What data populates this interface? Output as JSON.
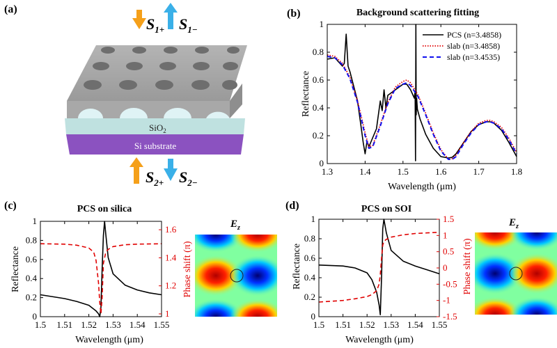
{
  "figure": {
    "colors": {
      "black": "#000000",
      "red": "#e00000",
      "blue": "#1010ee",
      "orange": "#f5a01a",
      "cyan": "#3ab0e8"
    },
    "panel_a": {
      "label": "(a)",
      "s1_plus": "S",
      "s1_plus_sub": "1+",
      "s1_minus": "S",
      "s1_minus_sub": "1−",
      "s2_plus": "S",
      "s2_plus_sub": "2+",
      "s2_minus": "S",
      "s2_minus_sub": "2−",
      "sio2_label": "SiO",
      "sio2_sub": "2",
      "substrate_label": "Si substrate"
    },
    "panel_b": {
      "label": "(b)",
      "title": "Background scattering fitting",
      "ylabel": "Reflectance",
      "xlabel": "Wavelength (μm)",
      "xticks": [
        "1.3",
        "1.4",
        "1.5",
        "1.6",
        "1.7",
        "1.8"
      ],
      "yticks": [
        "0",
        "0.2",
        "0.4",
        "0.6",
        "0.8",
        "1"
      ],
      "legend": [
        "PCS (n=3.4858)",
        "slab (n=3.4858)",
        "slab (n=3.4535)"
      ]
    },
    "panel_c": {
      "label": "(c)",
      "title": "PCS on silica",
      "ylabel_left": "Reflectance",
      "ylabel_right": "Phase shift (π)",
      "xlabel": "Wavelength (μm)",
      "xticks": [
        "1.5",
        "1.51",
        "1.52",
        "1.53",
        "1.54",
        "1.55"
      ],
      "yticks_left": [
        "0",
        "0.2",
        "0.4",
        "0.6",
        "0.8",
        "1"
      ],
      "yticks_right": [
        "1",
        "1.2",
        "1.4",
        "1.6"
      ],
      "field_label": "E",
      "field_sub": "z"
    },
    "panel_d": {
      "label": "(d)",
      "title": "PCS on SOI",
      "ylabel_left": "Reflectance",
      "ylabel_right": "Phase shift (π)",
      "xlabel": "Wavelength (μm)",
      "xticks": [
        "1.5",
        "1.51",
        "1.52",
        "1.53",
        "1.54",
        "1.55"
      ],
      "yticks_left": [
        "0",
        "0.2",
        "0.4",
        "0.6",
        "0.8",
        "1"
      ],
      "yticks_right": [
        "-1.5",
        "-1",
        "-0.5",
        "0",
        "0.5",
        "1",
        "1.5"
      ],
      "field_label": "E",
      "field_sub": "z"
    }
  },
  "chart_data": [
    {
      "type": "line",
      "title": "Background scattering fitting",
      "xlabel": "Wavelength (μm)",
      "ylabel": "Reflectance",
      "xlim": [
        1.3,
        1.8
      ],
      "ylim": [
        0,
        1
      ],
      "legend_position": "top-right",
      "series": [
        {
          "name": "PCS (n=3.4858)",
          "style": "solid-black",
          "x": [
            1.3,
            1.32,
            1.34,
            1.345,
            1.35,
            1.355,
            1.36,
            1.38,
            1.39,
            1.395,
            1.4,
            1.405,
            1.41,
            1.43,
            1.44,
            1.445,
            1.45,
            1.455,
            1.46,
            1.48,
            1.5,
            1.51,
            1.52,
            1.53,
            1.532,
            1.533,
            1.534,
            1.535,
            1.536,
            1.538,
            1.545,
            1.56,
            1.58,
            1.6,
            1.62,
            1.63,
            1.64,
            1.66,
            1.68,
            1.7,
            1.72,
            1.73,
            1.74,
            1.76,
            1.78,
            1.8
          ],
          "y": [
            0.75,
            0.76,
            0.7,
            0.72,
            0.93,
            0.7,
            0.66,
            0.45,
            0.25,
            0.15,
            0.07,
            0.16,
            0.12,
            0.25,
            0.45,
            0.38,
            0.53,
            0.4,
            0.49,
            0.53,
            0.57,
            0.57,
            0.53,
            0.47,
            0.52,
            0.02,
            1.0,
            0.35,
            0.47,
            0.39,
            0.32,
            0.21,
            0.11,
            0.05,
            0.04,
            0.045,
            0.07,
            0.15,
            0.23,
            0.28,
            0.3,
            0.3,
            0.29,
            0.24,
            0.15,
            0.05
          ]
        },
        {
          "name": "slab (n=3.4858)",
          "style": "dotted-red",
          "x": [
            1.3,
            1.32,
            1.34,
            1.36,
            1.38,
            1.4,
            1.41,
            1.42,
            1.44,
            1.46,
            1.48,
            1.5,
            1.51,
            1.52,
            1.54,
            1.56,
            1.58,
            1.6,
            1.62,
            1.63,
            1.64,
            1.66,
            1.68,
            1.7,
            1.72,
            1.73,
            1.74,
            1.76,
            1.78,
            1.8
          ],
          "y": [
            0.78,
            0.77,
            0.72,
            0.62,
            0.45,
            0.22,
            0.12,
            0.13,
            0.28,
            0.44,
            0.55,
            0.59,
            0.6,
            0.58,
            0.49,
            0.36,
            0.22,
            0.1,
            0.03,
            0.035,
            0.06,
            0.15,
            0.23,
            0.29,
            0.31,
            0.31,
            0.3,
            0.26,
            0.18,
            0.08
          ]
        },
        {
          "name": "slab (n=3.4535)",
          "style": "dashed-blue",
          "x": [
            1.3,
            1.32,
            1.34,
            1.36,
            1.38,
            1.4,
            1.41,
            1.42,
            1.44,
            1.46,
            1.48,
            1.5,
            1.51,
            1.52,
            1.54,
            1.56,
            1.58,
            1.6,
            1.62,
            1.63,
            1.64,
            1.66,
            1.68,
            1.7,
            1.72,
            1.73,
            1.74,
            1.76,
            1.78,
            1.8
          ],
          "y": [
            0.77,
            0.76,
            0.71,
            0.61,
            0.44,
            0.2,
            0.11,
            0.12,
            0.27,
            0.43,
            0.54,
            0.57,
            0.58,
            0.56,
            0.48,
            0.35,
            0.21,
            0.09,
            0.03,
            0.03,
            0.05,
            0.14,
            0.22,
            0.28,
            0.3,
            0.3,
            0.29,
            0.25,
            0.17,
            0.07
          ]
        }
      ]
    },
    {
      "type": "line",
      "title": "PCS on silica",
      "xlabel": "Wavelength (μm)",
      "ylabel": "Reflectance",
      "y2label": "Phase shift (π)",
      "xlim": [
        1.5,
        1.55
      ],
      "ylim": [
        0,
        1
      ],
      "y2lim": [
        0.98,
        1.66
      ],
      "series": [
        {
          "name": "Reflectance",
          "axis": "left",
          "style": "solid-black",
          "x": [
            1.5,
            1.51,
            1.515,
            1.52,
            1.523,
            1.524,
            1.5245,
            1.525,
            1.5255,
            1.526,
            1.5265,
            1.527,
            1.528,
            1.53,
            1.535,
            1.54,
            1.545,
            1.55
          ],
          "y": [
            0.23,
            0.19,
            0.16,
            0.12,
            0.06,
            0.03,
            0.0,
            0.1,
            0.5,
            0.85,
            1.0,
            0.86,
            0.62,
            0.45,
            0.33,
            0.28,
            0.25,
            0.23
          ]
        },
        {
          "name": "Phase shift",
          "axis": "right",
          "style": "dashed-red",
          "x": [
            1.5,
            1.51,
            1.515,
            1.52,
            1.522,
            1.523,
            1.524,
            1.5245,
            1.525,
            1.5255,
            1.526,
            1.527,
            1.528,
            1.53,
            1.535,
            1.54,
            1.55
          ],
          "y": [
            1.5,
            1.497,
            1.49,
            1.47,
            1.44,
            1.38,
            1.22,
            1.08,
            1.0,
            1.12,
            1.36,
            1.44,
            1.46,
            1.48,
            1.493,
            1.497,
            1.5
          ]
        }
      ]
    },
    {
      "type": "line",
      "title": "PCS on SOI",
      "xlabel": "Wavelength (μm)",
      "ylabel": "Reflectance",
      "y2label": "Phase shift (π)",
      "xlim": [
        1.5,
        1.55
      ],
      "ylim": [
        0,
        1
      ],
      "y2lim": [
        -1.5,
        1.5
      ],
      "series": [
        {
          "name": "Reflectance",
          "axis": "left",
          "style": "solid-black",
          "x": [
            1.5,
            1.51,
            1.515,
            1.52,
            1.522,
            1.524,
            1.525,
            1.5255,
            1.526,
            1.5265,
            1.527,
            1.528,
            1.53,
            1.535,
            1.54,
            1.545,
            1.55
          ],
          "y": [
            0.53,
            0.52,
            0.5,
            0.45,
            0.38,
            0.25,
            0.12,
            0.02,
            0.4,
            0.9,
            1.0,
            0.86,
            0.68,
            0.57,
            0.52,
            0.48,
            0.44
          ]
        },
        {
          "name": "Phase shift",
          "axis": "right",
          "style": "dashed-red",
          "x": [
            1.5,
            1.51,
            1.515,
            1.52,
            1.522,
            1.524,
            1.525,
            1.5255,
            1.526,
            1.5265,
            1.527,
            1.528,
            1.53,
            1.535,
            1.54,
            1.545,
            1.55
          ],
          "y": [
            -1.05,
            -1.0,
            -0.95,
            -0.88,
            -0.82,
            -0.7,
            -0.5,
            -0.2,
            0.3,
            0.7,
            0.82,
            0.88,
            0.95,
            1.02,
            1.06,
            1.08,
            1.1
          ]
        }
      ]
    }
  ]
}
